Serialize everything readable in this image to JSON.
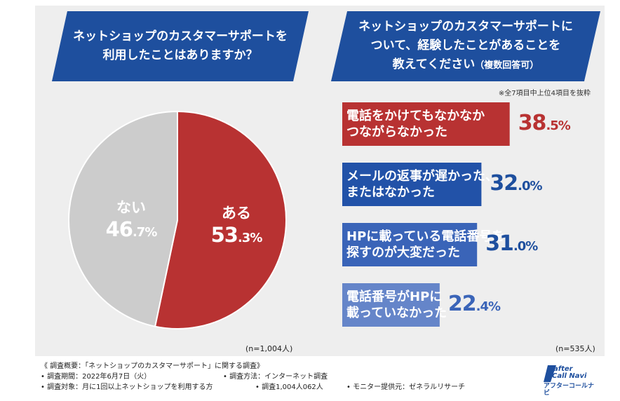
{
  "left_question": "ネットショップのカスタマーサポートを\n利用したことはありますか？",
  "right_question_main": "ネットショップのカスタマーサポートに\nついて、経験したことがあることを\n教えてください",
  "right_question_sub": "（複数回答可）",
  "note": "※全7項目中上位4項目を抜粋",
  "colors": {
    "banner": "#1e4f9e",
    "red": "#b83232",
    "blue1": "#2252a8",
    "blue2": "#3a64b8",
    "blue3": "#6585c9",
    "gray": "#cccccc"
  },
  "chart_data": [
    {
      "type": "pie",
      "title": "ネットショップのカスタマーサポートを利用したことはありますか？",
      "slices": [
        {
          "label": "ある",
          "value": 53.3,
          "int": "53",
          "dec": ".3%",
          "color": "#b83232"
        },
        {
          "label": "ない",
          "value": 46.7,
          "int": "46",
          "dec": ".7%",
          "color": "#cccccc"
        }
      ],
      "n": "(n=1,004人)"
    },
    {
      "type": "bar",
      "title": "ネットショップのカスタマーサポートについて、経験したことがあることを教えてください（複数回答可）",
      "categories": [
        "電話をかけてもなかなか\nつながらなかった",
        "メールの返事が遅かった、\nまたはなかった",
        "HPに載っている電話番号を\n探すのが大変だった",
        "電話番号がHPに\n載っていなかった"
      ],
      "values": [
        38.5,
        32.0,
        31.0,
        22.4
      ],
      "value_int": [
        "38",
        "32",
        "31",
        "22"
      ],
      "value_dec": [
        ".5%",
        ".0%",
        ".0%",
        ".4%"
      ],
      "colors": [
        "#b83232",
        "#2252a8",
        "#3a64b8",
        "#6585c9"
      ],
      "value_colors": [
        "#b83232",
        "#1e4f9e",
        "#1e4f9e",
        "#3a64b8"
      ],
      "n": "(n=535人)"
    }
  ],
  "footer": {
    "summary": "《 調査概要：「ネットショップのカスタマーサポート」に関する調査》",
    "period": "• 調査期間：2022年6月7日（火）",
    "method": "• 調査方法：インターネット調査",
    "target": "• 調査対象：月に1回以上ネットショップを利用する方",
    "count": "• 調査1,004人062人",
    "provider": "• モニター提供元：ゼネラルリサーチ"
  },
  "logo": {
    "line1": "after",
    "line2": "Call Navi",
    "line3": "アフターコールナビ"
  }
}
